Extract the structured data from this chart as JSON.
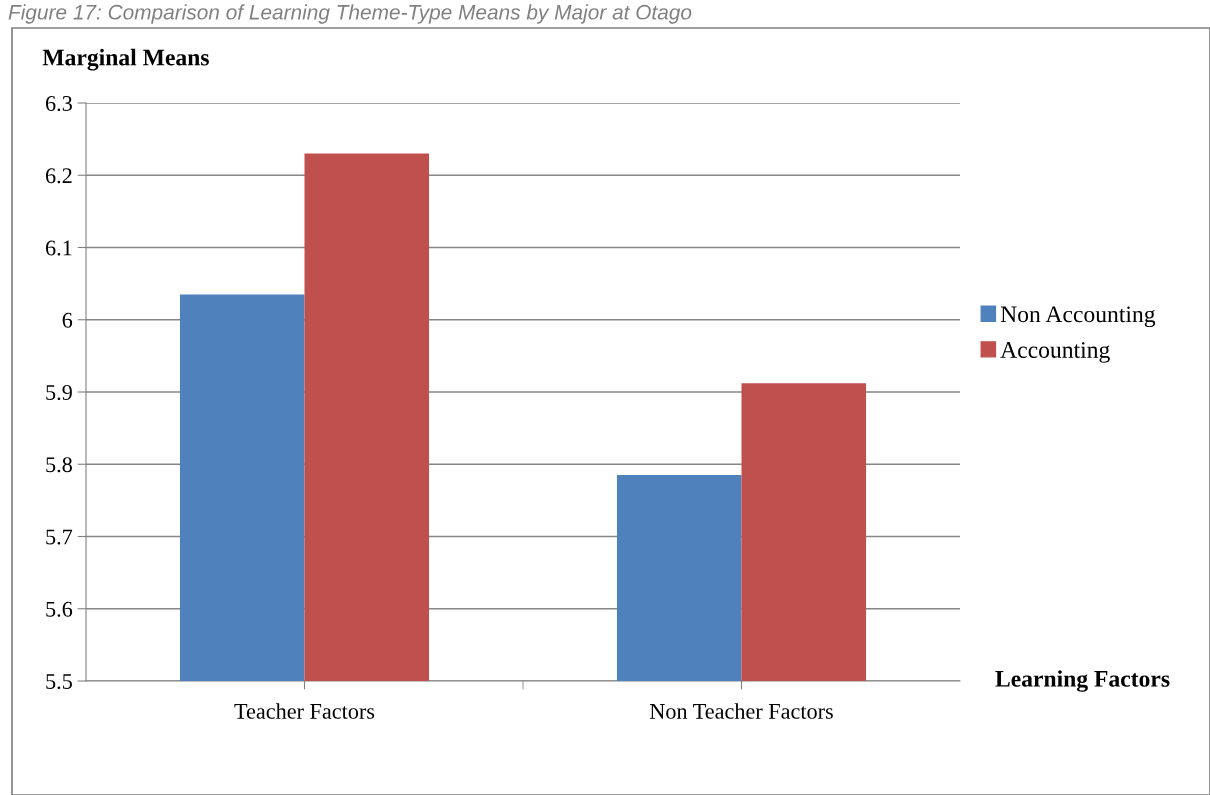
{
  "chart_data": {
    "type": "bar",
    "title": "Figure 17: Comparison of Learning Theme-Type Means by Major at Otago",
    "ylabel": "Marginal Means",
    "xlabel": "Learning Factors",
    "categories": [
      "Teacher Factors",
      "Non Teacher Factors"
    ],
    "series": [
      {
        "name": "Non Accounting",
        "color": "#4f81bd",
        "values": [
          6.035,
          5.785
        ]
      },
      {
        "name": "Accounting",
        "color": "#c0504d",
        "values": [
          6.23,
          5.912
        ]
      }
    ],
    "ylim": [
      5.5,
      6.3
    ],
    "yticks": [
      5.5,
      5.6,
      5.7,
      5.8,
      5.9,
      {
        "value": 6.0,
        "label": "6"
      },
      6.1,
      6.2,
      6.3
    ],
    "grid": "y",
    "legend": "right"
  }
}
